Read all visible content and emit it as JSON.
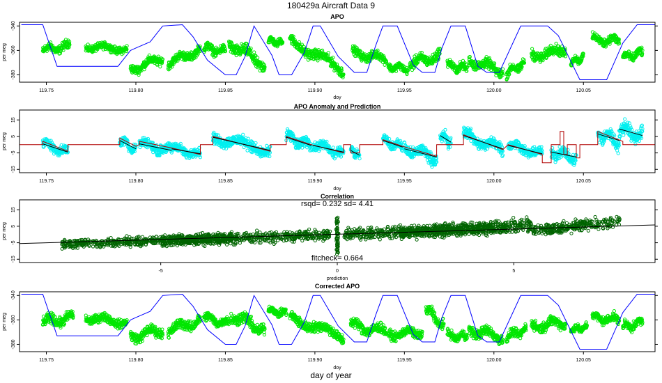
{
  "figure": {
    "title": "180429a   Aircraft Data 9",
    "bottom_label": "day of year"
  },
  "colors": {
    "apo_points": "#00e600",
    "anomaly_points": "#00f0f0",
    "correlation_points": "#006400",
    "altitude_line": "#0000ff",
    "prediction_line": "#b00000",
    "fit_line": "#000000"
  },
  "chart_data": [
    {
      "id": "apo",
      "type": "scatter",
      "title": "APO",
      "xlabel": "doy",
      "ylabel": "per meg",
      "xlim": [
        119.735,
        120.09
      ],
      "ylim": [
        -386,
        -337
      ],
      "xticks": [
        119.75,
        119.8,
        119.85,
        119.9,
        119.95,
        120.0,
        120.05
      ],
      "xtick_labels": [
        "119.75",
        "119.80",
        "119.85",
        "119.90",
        "119.95",
        "120.00",
        "120.05"
      ],
      "yticks": [
        -340,
        -360,
        -380
      ],
      "ytick_labels": [
        "-340",
        "-360",
        "-380"
      ],
      "point_color": "apo_points",
      "segments": [
        {
          "x": [
            119.748,
            119.763
          ],
          "y": [
            -360,
            -356
          ],
          "noise": 5
        },
        {
          "x": [
            119.772,
            119.795
          ],
          "y": [
            -357,
            -359
          ],
          "noise": 4
        },
        {
          "x": [
            119.797,
            119.815
          ],
          "y": [
            -376,
            -366
          ],
          "noise": 5
        },
        {
          "x": [
            119.818,
            119.836
          ],
          "y": [
            -370,
            -360
          ],
          "noise": 5
        },
        {
          "x": [
            119.838,
            119.85
          ],
          "y": [
            -358,
            -361
          ],
          "noise": 5
        },
        {
          "x": [
            119.852,
            119.872
          ],
          "y": [
            -354,
            -372
          ],
          "noise": 7
        },
        {
          "x": [
            119.874,
            119.882
          ],
          "y": [
            -352,
            -354
          ],
          "noise": 4
        },
        {
          "x": [
            119.886,
            119.916
          ],
          "y": [
            -352,
            -376
          ],
          "noise": 6
        },
        {
          "x": [
            119.921,
            119.94
          ],
          "y": [
            -362,
            -367
          ],
          "noise": 5
        },
        {
          "x": [
            119.941,
            119.952
          ],
          "y": [
            -373,
            -375
          ],
          "noise": 4
        },
        {
          "x": [
            119.953,
            119.97
          ],
          "y": [
            -371,
            -364
          ],
          "noise": 6
        },
        {
          "x": [
            119.974,
            119.985
          ],
          "y": [
            -372,
            -375
          ],
          "noise": 5
        },
        {
          "x": [
            119.986,
            120.005
          ],
          "y": [
            -368,
            -377
          ],
          "noise": 6
        },
        {
          "x": [
            120.007,
            120.017
          ],
          "y": [
            -378,
            -371
          ],
          "noise": 5
        },
        {
          "x": [
            120.021,
            120.04
          ],
          "y": [
            -365,
            -359
          ],
          "noise": 6
        },
        {
          "x": [
            120.043,
            120.05
          ],
          "y": [
            -369,
            -366
          ],
          "noise": 4
        },
        {
          "x": [
            120.055,
            120.07
          ],
          "y": [
            -351,
            -352
          ],
          "noise": 5
        },
        {
          "x": [
            120.072,
            120.083
          ],
          "y": [
            -366,
            -362
          ],
          "noise": 5
        }
      ],
      "altitude_line": {
        "x": [
          119.736,
          119.748,
          119.756,
          119.79,
          119.797,
          119.8,
          119.808,
          119.815,
          119.826,
          119.832,
          119.84,
          119.85,
          119.856,
          119.861,
          119.866,
          119.876,
          119.88,
          119.887,
          119.894,
          119.899,
          119.903,
          119.913,
          119.922,
          119.929,
          119.934,
          119.938,
          119.946,
          119.955,
          119.96,
          119.967,
          119.971,
          119.976,
          119.984,
          119.991,
          119.996,
          120.003,
          120.015,
          120.02,
          120.03,
          120.036,
          120.048,
          120.063,
          120.072,
          120.08,
          120.09
        ],
        "y": [
          -339,
          -339,
          -373,
          -373,
          -360,
          -358,
          -353,
          -340,
          -339,
          -349,
          -368,
          -380,
          -380,
          -365,
          -340,
          -364,
          -380,
          -380,
          -362,
          -340,
          -340,
          -365,
          -378,
          -378,
          -356,
          -340,
          -340,
          -372,
          -378,
          -378,
          -358,
          -340,
          -340,
          -373,
          -378,
          -378,
          -340,
          -340,
          -340,
          -348,
          -384,
          -384,
          -354,
          -339,
          -339
        ]
      }
    },
    {
      "id": "anomaly",
      "type": "scatter",
      "title": "APO Anomaly and Prediction",
      "xlabel": "doy",
      "ylabel": "per meg",
      "xlim": [
        119.735,
        120.09
      ],
      "ylim": [
        -17,
        21
      ],
      "xticks": [
        119.75,
        119.8,
        119.85,
        119.9,
        119.95,
        120.0,
        120.05
      ],
      "xtick_labels": [
        "119.75",
        "119.80",
        "119.85",
        "119.90",
        "119.95",
        "120.00",
        "120.05"
      ],
      "yticks": [
        15,
        5,
        -5,
        -15
      ],
      "ytick_labels": [
        "15",
        "5",
        "-5",
        "-15"
      ],
      "point_color": "anomaly_points",
      "segments": [
        {
          "x": [
            119.748,
            119.762
          ],
          "y": [
            1,
            -5
          ],
          "noise": 4
        },
        {
          "x": [
            119.791,
            119.8
          ],
          "y": [
            3,
            -3
          ],
          "noise": 4
        },
        {
          "x": [
            119.802,
            119.82
          ],
          "y": [
            1,
            -4
          ],
          "noise": 4
        },
        {
          "x": [
            119.82,
            119.836
          ],
          "y": [
            -2,
            -6
          ],
          "noise": 4
        },
        {
          "x": [
            119.843,
            119.875
          ],
          "y": [
            5,
            -4
          ],
          "noise": 5
        },
        {
          "x": [
            119.884,
            119.898
          ],
          "y": [
            5,
            -1
          ],
          "noise": 5
        },
        {
          "x": [
            119.899,
            119.916
          ],
          "y": [
            0,
            -5
          ],
          "noise": 4
        },
        {
          "x": [
            119.92,
            119.925
          ],
          "y": [
            -3,
            -7
          ],
          "noise": 3
        },
        {
          "x": [
            119.938,
            119.949
          ],
          "y": [
            3,
            -2
          ],
          "noise": 4
        },
        {
          "x": [
            119.95,
            119.968
          ],
          "y": [
            -2,
            -8
          ],
          "noise": 5
        },
        {
          "x": [
            119.97,
            119.976
          ],
          "y": [
            6,
            1
          ],
          "noise": 5
        },
        {
          "x": [
            119.983,
            120.005
          ],
          "y": [
            6,
            -3
          ],
          "noise": 5
        },
        {
          "x": [
            120.008,
            120.027
          ],
          "y": [
            0,
            -6
          ],
          "noise": 4
        },
        {
          "x": [
            120.032,
            120.046
          ],
          "y": [
            -4,
            -8
          ],
          "noise": 5
        },
        {
          "x": [
            120.058,
            120.07
          ],
          "y": [
            7,
            2
          ],
          "noise": 6
        },
        {
          "x": [
            120.07,
            120.083
          ],
          "y": [
            10,
            5
          ],
          "noise": 6
        }
      ],
      "prediction_steps": [
        [
          119.735,
          0
        ],
        [
          119.748,
          0
        ],
        [
          119.748,
          2
        ],
        [
          119.762,
          -4
        ],
        [
          119.762,
          0
        ],
        [
          119.791,
          0
        ],
        [
          119.791,
          4
        ],
        [
          119.8,
          -1
        ],
        [
          119.802,
          0
        ],
        [
          119.802,
          2
        ],
        [
          119.82,
          -2
        ],
        [
          119.836,
          -6
        ],
        [
          119.836,
          0
        ],
        [
          119.843,
          0
        ],
        [
          119.843,
          5
        ],
        [
          119.875,
          -4
        ],
        [
          119.875,
          0
        ],
        [
          119.884,
          0
        ],
        [
          119.884,
          5
        ],
        [
          119.898,
          0
        ],
        [
          119.916,
          -5
        ],
        [
          119.916,
          0
        ],
        [
          119.92,
          0
        ],
        [
          119.92,
          -5
        ],
        [
          119.925,
          -5
        ],
        [
          119.925,
          0
        ],
        [
          119.938,
          0
        ],
        [
          119.938,
          3
        ],
        [
          119.949,
          -1
        ],
        [
          119.968,
          -7
        ],
        [
          119.968,
          0
        ],
        [
          119.983,
          0
        ],
        [
          119.983,
          6
        ],
        [
          120.005,
          -3
        ],
        [
          120.008,
          0
        ],
        [
          120.027,
          -6
        ],
        [
          120.027,
          -11
        ],
        [
          120.032,
          -11
        ],
        [
          120.032,
          0
        ],
        [
          120.037,
          0
        ],
        [
          120.037,
          8
        ],
        [
          120.039,
          8
        ],
        [
          120.039,
          -6
        ],
        [
          120.041,
          -6
        ],
        [
          120.041,
          0
        ],
        [
          120.046,
          0
        ],
        [
          120.046,
          -8
        ],
        [
          120.048,
          -8
        ],
        [
          120.048,
          0
        ],
        [
          120.058,
          0
        ],
        [
          120.058,
          8
        ],
        [
          120.072,
          2
        ],
        [
          120.072,
          0
        ],
        [
          120.09,
          0
        ]
      ]
    },
    {
      "id": "correlation",
      "type": "scatter",
      "title": "Correlation",
      "subtitle": "rsqd= 0.232 sd= 4.41",
      "annotation": "fitcheck= 0.664",
      "xlabel": "prediction",
      "ylabel": "per meg",
      "xlim": [
        -9,
        9
      ],
      "ylim": [
        -17,
        21
      ],
      "xticks": [
        -5,
        0,
        5
      ],
      "xtick_labels": [
        "-5",
        "0",
        "5"
      ],
      "yticks": [
        15,
        5,
        -5,
        -15
      ],
      "ytick_labels": [
        "15",
        "5",
        "-5",
        "-15"
      ],
      "point_color": "correlation_points",
      "fit_line": {
        "x": [
          -9,
          9
        ],
        "y": [
          -5.5,
          5.8
        ]
      },
      "clusters": [
        {
          "x": [
            -7.8,
            -3.0
          ],
          "y": [
            -6,
            -2
          ],
          "noise": 4
        },
        {
          "x": [
            -5.0,
            -0.2
          ],
          "y": [
            -4,
            0
          ],
          "noise": 5
        },
        {
          "x": [
            0.2,
            4.8
          ],
          "y": [
            0,
            4
          ],
          "noise": 5
        },
        {
          "x": [
            1.8,
            5.5
          ],
          "y": [
            1,
            6
          ],
          "noise": 6
        },
        {
          "x": [
            5.5,
            8.0
          ],
          "y": [
            2,
            8
          ],
          "noise": 5
        }
      ],
      "vertical_spike": {
        "x": 0,
        "y": [
          -12,
          11
        ]
      }
    },
    {
      "id": "corrected",
      "type": "scatter",
      "title": "Corrected APO",
      "xlabel": "doy",
      "ylabel": "per meg",
      "xlim": [
        119.735,
        120.09
      ],
      "ylim": [
        -386,
        -337
      ],
      "xticks": [
        119.75,
        119.8,
        119.85,
        119.9,
        119.95,
        120.0,
        120.05
      ],
      "xtick_labels": [
        "119.75",
        "119.80",
        "119.85",
        "119.90",
        "119.95",
        "120.00",
        "120.05"
      ],
      "yticks": [
        -340,
        -360,
        -380
      ],
      "ytick_labels": [
        "-340",
        "-360",
        "-380"
      ],
      "point_color": "apo_points",
      "segments": [
        {
          "x": [
            119.748,
            119.765
          ],
          "y": [
            -362,
            -358
          ],
          "noise": 6
        },
        {
          "x": [
            119.772,
            119.795
          ],
          "y": [
            -358,
            -362
          ],
          "noise": 5
        },
        {
          "x": [
            119.797,
            119.815
          ],
          "y": [
            -374,
            -368
          ],
          "noise": 6
        },
        {
          "x": [
            119.818,
            119.836
          ],
          "y": [
            -368,
            -361
          ],
          "noise": 6
        },
        {
          "x": [
            119.838,
            119.852
          ],
          "y": [
            -358,
            -363
          ],
          "noise": 5
        },
        {
          "x": [
            119.853,
            119.872
          ],
          "y": [
            -356,
            -368
          ],
          "noise": 7
        },
        {
          "x": [
            119.874,
            119.884
          ],
          "y": [
            -352,
            -355
          ],
          "noise": 4
        },
        {
          "x": [
            119.886,
            119.916
          ],
          "y": [
            -358,
            -374
          ],
          "noise": 6
        },
        {
          "x": [
            119.92,
            119.94
          ],
          "y": [
            -364,
            -370
          ],
          "noise": 6
        },
        {
          "x": [
            119.941,
            119.96
          ],
          "y": [
            -372,
            -370
          ],
          "noise": 5
        },
        {
          "x": [
            119.962,
            119.972
          ],
          "y": [
            -350,
            -366
          ],
          "noise": 6
        },
        {
          "x": [
            119.974,
            119.985
          ],
          "y": [
            -373,
            -374
          ],
          "noise": 5
        },
        {
          "x": [
            119.986,
            120.005
          ],
          "y": [
            -368,
            -374
          ],
          "noise": 6
        },
        {
          "x": [
            120.007,
            120.018
          ],
          "y": [
            -374,
            -368
          ],
          "noise": 5
        },
        {
          "x": [
            120.021,
            120.04
          ],
          "y": [
            -365,
            -362
          ],
          "noise": 6
        },
        {
          "x": [
            120.043,
            120.052
          ],
          "y": [
            -368,
            -366
          ],
          "noise": 4
        },
        {
          "x": [
            120.055,
            120.07
          ],
          "y": [
            -358,
            -360
          ],
          "noise": 5
        },
        {
          "x": [
            120.072,
            120.083
          ],
          "y": [
            -366,
            -362
          ],
          "noise": 5
        }
      ],
      "altitude_line": {
        "x": [
          119.736,
          119.748,
          119.756,
          119.79,
          119.797,
          119.8,
          119.808,
          119.815,
          119.826,
          119.832,
          119.84,
          119.85,
          119.856,
          119.861,
          119.866,
          119.876,
          119.88,
          119.887,
          119.894,
          119.899,
          119.903,
          119.913,
          119.922,
          119.929,
          119.934,
          119.938,
          119.946,
          119.955,
          119.96,
          119.967,
          119.971,
          119.976,
          119.984,
          119.991,
          119.996,
          120.003,
          120.015,
          120.02,
          120.03,
          120.036,
          120.048,
          120.063,
          120.072,
          120.08,
          120.09
        ],
        "y": [
          -339,
          -339,
          -373,
          -373,
          -360,
          -358,
          -353,
          -340,
          -339,
          -349,
          -368,
          -380,
          -380,
          -365,
          -340,
          -364,
          -380,
          -380,
          -362,
          -340,
          -340,
          -365,
          -378,
          -378,
          -356,
          -340,
          -340,
          -372,
          -378,
          -378,
          -358,
          -340,
          -340,
          -373,
          -378,
          -378,
          -340,
          -340,
          -340,
          -348,
          -384,
          -384,
          -354,
          -339,
          -339
        ]
      }
    }
  ]
}
